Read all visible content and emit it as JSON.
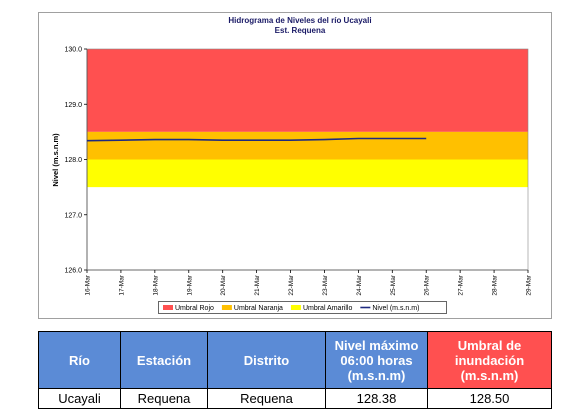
{
  "chart_data": {
    "type": "line",
    "title": "Hidrograma de Niveles del río Ucayali",
    "subtitle": "Est. Requena",
    "y_label": "Nivel (m.s.n.m)",
    "categories": [
      "16-Mar",
      "17-Mar",
      "18-Mar",
      "19-Mar",
      "20-Mar",
      "21-Mar",
      "22-Mar",
      "23-Mar",
      "24-Mar",
      "25-Mar",
      "26-Mar",
      "27-Mar",
      "28-Mar",
      "29-Mar"
    ],
    "bands": [
      {
        "name": "Umbral Rojo",
        "color": "#ff5050",
        "from": 128.5,
        "to": 130
      },
      {
        "name": "Umbral Naranja",
        "color": "#ffc000",
        "from": 128,
        "to": 128.5
      },
      {
        "name": "Umbral Amarillo",
        "color": "#ffff00",
        "from": 127.5,
        "to": 128
      }
    ],
    "series": [
      {
        "name": "Nivel (m.s.n.m)",
        "color": "#1f2a80",
        "values": [
          128.34,
          128.35,
          128.36,
          128.36,
          128.35,
          128.35,
          128.35,
          128.36,
          128.38,
          128.38,
          128.38,
          null,
          null,
          null
        ]
      }
    ],
    "ylim": [
      126,
      130
    ],
    "yticks": [
      {
        "value": 126,
        "label": "126.0"
      },
      {
        "value": 127,
        "label": "127.0"
      },
      {
        "value": 128,
        "label": "128.0"
      },
      {
        "value": 129,
        "label": "129.0"
      },
      {
        "value": 130,
        "label": "130.0"
      }
    ],
    "grid": false
  },
  "table": {
    "headers": [
      "Río",
      "Estación",
      "Distrito",
      "Nivel máximo 06:00 horas (m.s.n.m)",
      "Umbral de inundación (m.s.n.m)"
    ],
    "rows": [
      [
        "Ucayali",
        "Requena",
        "Requena",
        "128.38",
        "128.50"
      ]
    ]
  }
}
